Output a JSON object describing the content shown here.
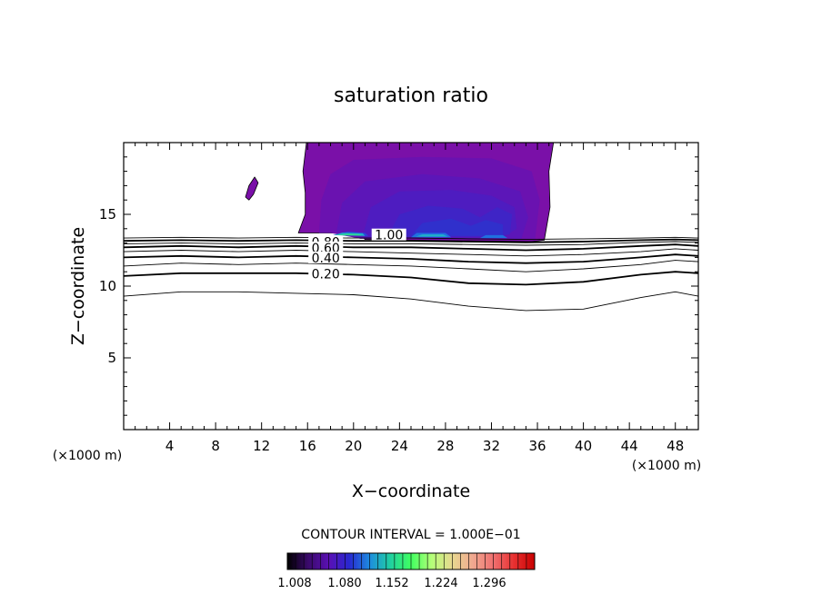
{
  "chart_data": {
    "type": "contour",
    "title": "saturation ratio",
    "xlabel": "X−coordinate",
    "ylabel": "Z−coordinate",
    "x_units_label": "(×1000 m)",
    "z_units_label": "(×1000 m)",
    "xlim": [
      0,
      50
    ],
    "ylim": [
      0,
      20
    ],
    "x_ticks": [
      4,
      8,
      12,
      16,
      20,
      24,
      28,
      32,
      36,
      40,
      44,
      48
    ],
    "y_ticks": [
      5,
      10,
      15
    ],
    "contour_interval_text": "CONTOUR INTERVAL = 1.000E−01",
    "contour_labels": [
      {
        "text": "1.00",
        "x": 23.0,
        "z": 13.5
      },
      {
        "text": "0.80",
        "x": 17.5,
        "z": 13.0
      },
      {
        "text": "0.60",
        "x": 17.5,
        "z": 12.6
      },
      {
        "text": "0.40",
        "x": 17.5,
        "z": 11.9
      },
      {
        "text": "0.20",
        "x": 17.5,
        "z": 10.8
      }
    ],
    "contour_lines": [
      {
        "level": 0.1,
        "bold": false,
        "points": [
          [
            0,
            9.3
          ],
          [
            5,
            9.6
          ],
          [
            10,
            9.6
          ],
          [
            15,
            9.5
          ],
          [
            20,
            9.4
          ],
          [
            25,
            9.1
          ],
          [
            30,
            8.6
          ],
          [
            35,
            8.3
          ],
          [
            40,
            8.4
          ],
          [
            45,
            9.2
          ],
          [
            48,
            9.6
          ],
          [
            50,
            9.3
          ]
        ]
      },
      {
        "level": 0.2,
        "bold": true,
        "points": [
          [
            0,
            10.7
          ],
          [
            5,
            10.9
          ],
          [
            10,
            10.9
          ],
          [
            15,
            10.9
          ],
          [
            20,
            10.8
          ],
          [
            25,
            10.6
          ],
          [
            30,
            10.2
          ],
          [
            35,
            10.1
          ],
          [
            40,
            10.3
          ],
          [
            45,
            10.8
          ],
          [
            48,
            11.0
          ],
          [
            50,
            10.9
          ]
        ]
      },
      {
        "level": 0.3,
        "bold": false,
        "points": [
          [
            0,
            11.4
          ],
          [
            5,
            11.6
          ],
          [
            10,
            11.5
          ],
          [
            15,
            11.6
          ],
          [
            20,
            11.5
          ],
          [
            25,
            11.4
          ],
          [
            30,
            11.2
          ],
          [
            35,
            11.0
          ],
          [
            40,
            11.2
          ],
          [
            45,
            11.5
          ],
          [
            48,
            11.8
          ],
          [
            50,
            11.7
          ]
        ]
      },
      {
        "level": 0.4,
        "bold": true,
        "points": [
          [
            0,
            12.0
          ],
          [
            5,
            12.1
          ],
          [
            10,
            12.0
          ],
          [
            15,
            12.1
          ],
          [
            20,
            12.0
          ],
          [
            25,
            11.9
          ],
          [
            30,
            11.7
          ],
          [
            35,
            11.6
          ],
          [
            40,
            11.7
          ],
          [
            45,
            12.0
          ],
          [
            48,
            12.2
          ],
          [
            50,
            12.1
          ]
        ]
      },
      {
        "level": 0.5,
        "bold": false,
        "points": [
          [
            0,
            12.4
          ],
          [
            5,
            12.5
          ],
          [
            10,
            12.4
          ],
          [
            15,
            12.5
          ],
          [
            20,
            12.4
          ],
          [
            25,
            12.3
          ],
          [
            30,
            12.2
          ],
          [
            35,
            12.1
          ],
          [
            40,
            12.2
          ],
          [
            45,
            12.4
          ],
          [
            48,
            12.6
          ],
          [
            50,
            12.5
          ]
        ]
      },
      {
        "level": 0.6,
        "bold": true,
        "points": [
          [
            0,
            12.7
          ],
          [
            5,
            12.8
          ],
          [
            10,
            12.7
          ],
          [
            15,
            12.8
          ],
          [
            20,
            12.7
          ],
          [
            25,
            12.7
          ],
          [
            30,
            12.6
          ],
          [
            35,
            12.5
          ],
          [
            40,
            12.6
          ],
          [
            45,
            12.8
          ],
          [
            48,
            12.9
          ],
          [
            50,
            12.8
          ]
        ]
      },
      {
        "level": 0.7,
        "bold": false,
        "points": [
          [
            0,
            12.95
          ],
          [
            5,
            13.0
          ],
          [
            10,
            12.95
          ],
          [
            15,
            13.0
          ],
          [
            20,
            12.95
          ],
          [
            25,
            12.95
          ],
          [
            30,
            12.9
          ],
          [
            35,
            12.85
          ],
          [
            40,
            12.9
          ],
          [
            45,
            13.05
          ],
          [
            48,
            13.1
          ],
          [
            50,
            13.05
          ]
        ]
      },
      {
        "level": 0.8,
        "bold": true,
        "points": [
          [
            0,
            13.15
          ],
          [
            5,
            13.2
          ],
          [
            10,
            13.15
          ],
          [
            15,
            13.2
          ],
          [
            20,
            13.15
          ],
          [
            25,
            13.15
          ],
          [
            30,
            13.1
          ],
          [
            35,
            13.05
          ],
          [
            40,
            13.1
          ],
          [
            45,
            13.2
          ],
          [
            48,
            13.25
          ],
          [
            50,
            13.2
          ]
        ]
      },
      {
        "level": 0.9,
        "bold": false,
        "points": [
          [
            0,
            13.35
          ],
          [
            5,
            13.4
          ],
          [
            10,
            13.35
          ],
          [
            15,
            13.4
          ],
          [
            20,
            13.35
          ],
          [
            25,
            13.35
          ],
          [
            30,
            13.3
          ],
          [
            35,
            13.25
          ],
          [
            40,
            13.3
          ],
          [
            45,
            13.35
          ],
          [
            48,
            13.4
          ],
          [
            50,
            13.35
          ]
        ]
      }
    ],
    "filled_regions": [
      {
        "level": 1.008,
        "color": "#7a10a8",
        "points": [
          [
            15.2,
            13.7
          ],
          [
            15.8,
            15.0
          ],
          [
            15.8,
            16.5
          ],
          [
            15.6,
            18.0
          ],
          [
            15.9,
            20.0
          ],
          [
            37.4,
            20.0
          ],
          [
            37.0,
            18.0
          ],
          [
            37.1,
            15.5
          ],
          [
            36.6,
            13.2
          ],
          [
            35.5,
            13.1
          ],
          [
            30.0,
            13.15
          ],
          [
            25.0,
            13.2
          ],
          [
            21.0,
            13.25
          ],
          [
            20.6,
            13.6
          ],
          [
            18.0,
            13.7
          ]
        ]
      },
      {
        "level": 1.008,
        "color": "#7a10a8",
        "points": [
          [
            10.6,
            16.2
          ],
          [
            10.9,
            17.0
          ],
          [
            11.4,
            17.6
          ],
          [
            11.7,
            17.2
          ],
          [
            11.3,
            16.4
          ],
          [
            10.9,
            16.0
          ]
        ]
      },
      {
        "level": 1.03,
        "color": "#6a12b0",
        "points": [
          [
            17.0,
            13.7
          ],
          [
            17.2,
            16.0
          ],
          [
            18.0,
            17.8
          ],
          [
            20.0,
            18.8
          ],
          [
            26.0,
            19.0
          ],
          [
            32.0,
            18.9
          ],
          [
            35.5,
            18.0
          ],
          [
            36.2,
            16.0
          ],
          [
            35.8,
            13.3
          ],
          [
            20.6,
            13.3
          ],
          [
            18.0,
            13.7
          ]
        ]
      },
      {
        "level": 1.05,
        "color": "#5c16b8",
        "points": [
          [
            18.5,
            13.7
          ],
          [
            19.0,
            15.8
          ],
          [
            21.0,
            17.3
          ],
          [
            26.0,
            17.8
          ],
          [
            31.0,
            17.5
          ],
          [
            34.5,
            16.6
          ],
          [
            35.2,
            14.8
          ],
          [
            34.6,
            13.3
          ],
          [
            20.6,
            13.35
          ],
          [
            19.0,
            13.7
          ]
        ]
      },
      {
        "level": 1.07,
        "color": "#4e1cc0",
        "points": [
          [
            20.8,
            13.5
          ],
          [
            21.5,
            15.5
          ],
          [
            24.0,
            16.6
          ],
          [
            28.5,
            16.7
          ],
          [
            32.0,
            16.3
          ],
          [
            34.0,
            15.5
          ],
          [
            34.2,
            14.0
          ],
          [
            33.0,
            13.4
          ],
          [
            21.0,
            13.4
          ]
        ]
      },
      {
        "level": 1.09,
        "color": "#3f24c6",
        "points": [
          [
            23.0,
            13.5
          ],
          [
            24.0,
            15.0
          ],
          [
            26.5,
            15.6
          ],
          [
            29.5,
            15.4
          ],
          [
            31.0,
            14.8
          ],
          [
            32.5,
            15.5
          ],
          [
            33.8,
            15.0
          ],
          [
            33.6,
            13.6
          ],
          [
            32.0,
            13.45
          ],
          [
            24.0,
            13.45
          ]
        ]
      },
      {
        "level": 1.11,
        "color": "#3030cc",
        "points": [
          [
            25.0,
            13.5
          ],
          [
            26.0,
            14.4
          ],
          [
            28.5,
            14.7
          ],
          [
            30.2,
            14.2
          ],
          [
            31.5,
            14.6
          ],
          [
            33.0,
            14.3
          ],
          [
            33.0,
            13.5
          ]
        ]
      },
      {
        "level": 1.13,
        "color": "#2a48d8",
        "points": [
          [
            18.2,
            13.55
          ],
          [
            19.5,
            13.8
          ],
          [
            21.0,
            13.7
          ],
          [
            21.3,
            13.5
          ]
        ]
      },
      {
        "level": 1.15,
        "color": "#1f70e0",
        "points": [
          [
            25.0,
            13.4
          ],
          [
            25.5,
            13.7
          ],
          [
            28.0,
            13.7
          ],
          [
            28.5,
            13.4
          ]
        ]
      },
      {
        "level": 1.15,
        "color": "#1f70e0",
        "points": [
          [
            31.0,
            13.35
          ],
          [
            31.5,
            13.55
          ],
          [
            33.0,
            13.55
          ],
          [
            33.4,
            13.35
          ]
        ]
      },
      {
        "level": 1.18,
        "color": "#20b0c8",
        "points": [
          [
            18.3,
            13.55
          ],
          [
            19.0,
            13.72
          ],
          [
            20.8,
            13.68
          ],
          [
            21.0,
            13.5
          ]
        ]
      },
      {
        "level": 1.18,
        "color": "#20b0c8",
        "points": [
          [
            25.4,
            13.45
          ],
          [
            26.0,
            13.6
          ],
          [
            27.8,
            13.6
          ],
          [
            28.2,
            13.45
          ]
        ]
      },
      {
        "level": 1.2,
        "color": "#30d890",
        "points": [
          [
            18.5,
            13.55
          ],
          [
            19.5,
            13.66
          ],
          [
            20.5,
            13.62
          ],
          [
            20.7,
            13.52
          ]
        ]
      }
    ],
    "colorbar": {
      "tick_labels": [
        "1.008",
        "1.080",
        "1.152",
        "1.224",
        "1.296"
      ],
      "stops": [
        "#000000",
        "#3a0a6a",
        "#5a10b4",
        "#2828d0",
        "#1e8ce0",
        "#20d0a0",
        "#40ff60",
        "#b4ff78",
        "#e8d890",
        "#f0a890",
        "#f07070",
        "#e83030",
        "#c80000"
      ],
      "segments": 30
    }
  }
}
